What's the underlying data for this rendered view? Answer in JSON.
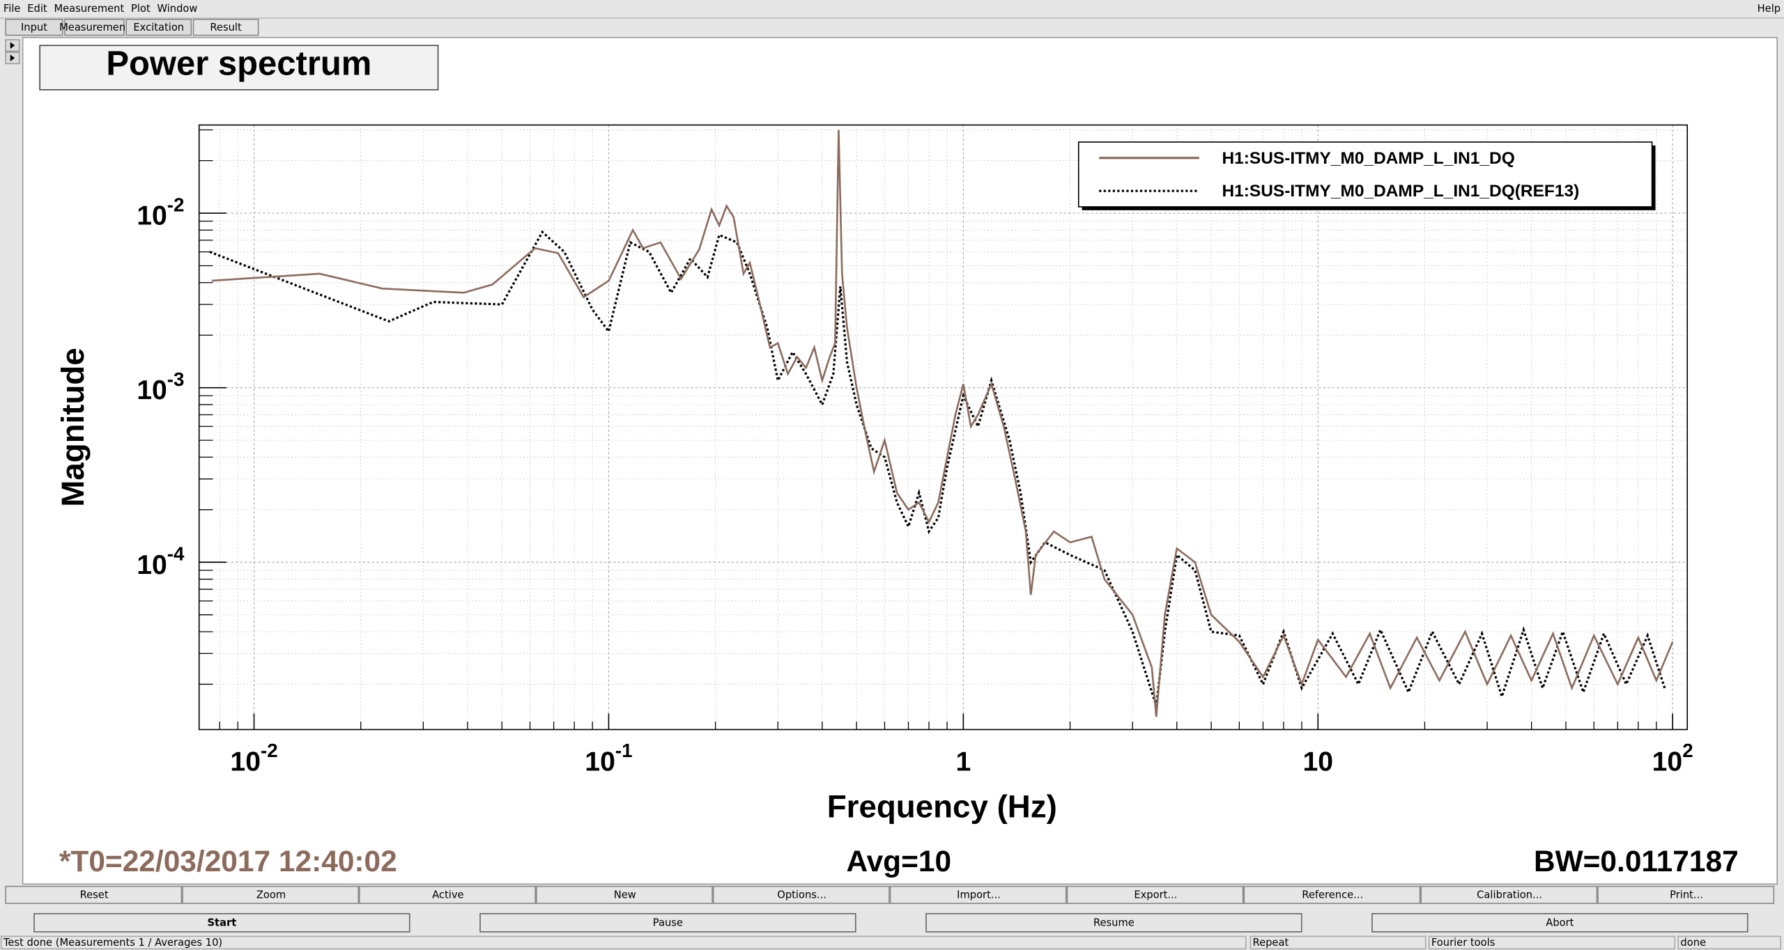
{
  "menu": {
    "items": [
      "File",
      "Edit",
      "Measurement",
      "Plot",
      "Window"
    ],
    "help": "Help"
  },
  "tabs": {
    "items": [
      "Input",
      "Measurement",
      "Excitation",
      "Result"
    ],
    "selected": 3
  },
  "panel_title": "Power spectrum",
  "chart_data": {
    "type": "line",
    "x_label": "Frequency (Hz)",
    "y_label": "Magnitude",
    "xlog": true,
    "ylog": true,
    "grid": true,
    "legend": "top-right",
    "xlim": [
      0.007,
      110
    ],
    "ylim": [
      1.1e-05,
      0.032
    ],
    "xticks": [
      {
        "value": 0.01,
        "label": "10",
        "exponent": "-2"
      },
      {
        "value": 0.1,
        "label": "10",
        "exponent": "-1"
      },
      1,
      10,
      {
        "value": 100,
        "label": "10",
        "exponent": "2"
      }
    ],
    "yticks": [
      {
        "value": 0.01,
        "label": "10",
        "exponent": "-2"
      },
      {
        "value": 0.001,
        "label": "10",
        "exponent": "-3"
      },
      {
        "value": 0.0001,
        "label": "10",
        "exponent": "-4"
      }
    ],
    "xminor": [
      0.008,
      0.009,
      0.02,
      0.03,
      0.04,
      0.05,
      0.06,
      0.07,
      0.08,
      0.09,
      0.2,
      0.3,
      0.4,
      0.5,
      0.6,
      0.7,
      0.8,
      0.9,
      2,
      3,
      4,
      5,
      6,
      7,
      8,
      9,
      20,
      30,
      40,
      50,
      60,
      70,
      80,
      90
    ],
    "yminor": [
      2e-05,
      3e-05,
      4e-05,
      5e-05,
      6e-05,
      7e-05,
      8e-05,
      9e-05,
      0.0002,
      0.0003,
      0.0004,
      0.0005,
      0.0006,
      0.0007,
      0.0008,
      0.0009,
      0.002,
      0.003,
      0.004,
      0.005,
      0.006,
      0.007,
      0.008,
      0.009,
      0.02,
      0.03
    ],
    "series": [
      {
        "name": "H1:SUS-ITMY_M0_DAMP_L_IN1_DQ",
        "color": "#8b6b5c",
        "style": "solid",
        "x": [
          0.0076,
          0.0153,
          0.023,
          0.039,
          0.047,
          0.062,
          0.072,
          0.085,
          0.1,
          0.117,
          0.125,
          0.14,
          0.16,
          0.18,
          0.195,
          0.205,
          0.215,
          0.225,
          0.24,
          0.25,
          0.265,
          0.285,
          0.3,
          0.32,
          0.34,
          0.36,
          0.38,
          0.4,
          0.42,
          0.435,
          0.445,
          0.455,
          0.47,
          0.5,
          0.53,
          0.56,
          0.6,
          0.65,
          0.7,
          0.75,
          0.8,
          0.85,
          0.9,
          0.95,
          1.0,
          1.05,
          1.1,
          1.2,
          1.3,
          1.4,
          1.5,
          1.55,
          1.6,
          1.8,
          2.0,
          2.3,
          2.5,
          3.0,
          3.4,
          3.5,
          3.7,
          4.0,
          4.5,
          5.0,
          6,
          7,
          8,
          9,
          10,
          12,
          14,
          16,
          19,
          22,
          26,
          30,
          35,
          40,
          46,
          52,
          60,
          70,
          80,
          90,
          100
        ],
        "values": [
          0.0041,
          0.0045,
          0.0037,
          0.0035,
          0.0039,
          0.0063,
          0.0059,
          0.0033,
          0.0041,
          0.008,
          0.0063,
          0.0068,
          0.0042,
          0.0062,
          0.0105,
          0.0085,
          0.011,
          0.0095,
          0.0045,
          0.0052,
          0.0032,
          0.0017,
          0.0018,
          0.0012,
          0.0015,
          0.0013,
          0.0017,
          0.0011,
          0.0015,
          0.0018,
          0.03,
          0.0045,
          0.0022,
          0.001,
          0.00055,
          0.00033,
          0.0005,
          0.00025,
          0.0002,
          0.00022,
          0.00017,
          0.00022,
          0.0004,
          0.0007,
          0.00105,
          0.0006,
          0.0007,
          0.00105,
          0.0006,
          0.0003,
          0.00015,
          6.5e-05,
          0.00011,
          0.00015,
          0.00013,
          0.00014,
          8e-05,
          5e-05,
          2.5e-05,
          1.3e-05,
          5e-05,
          0.00012,
          0.0001,
          5e-05,
          3.5e-05,
          2.2e-05,
          3.8e-05,
          2e-05,
          3.6e-05,
          2.2e-05,
          3.9e-05,
          1.9e-05,
          3.7e-05,
          2.1e-05,
          4e-05,
          2e-05,
          3.8e-05,
          2.1e-05,
          3.9e-05,
          1.9e-05,
          3.8e-05,
          2e-05,
          3.7e-05,
          2.1e-05,
          3.5e-05
        ]
      },
      {
        "name": "H1:SUS-ITMY_M0_DAMP_L_IN1_DQ(REF13)",
        "color": "#000000",
        "style": "dotted",
        "x": [
          0.0075,
          0.024,
          0.032,
          0.05,
          0.065,
          0.075,
          0.09,
          0.1,
          0.115,
          0.13,
          0.15,
          0.17,
          0.19,
          0.205,
          0.23,
          0.25,
          0.28,
          0.3,
          0.33,
          0.36,
          0.4,
          0.43,
          0.45,
          0.47,
          0.5,
          0.55,
          0.6,
          0.65,
          0.7,
          0.75,
          0.8,
          0.85,
          0.9,
          1.0,
          1.1,
          1.2,
          1.35,
          1.45,
          1.55,
          1.7,
          2.0,
          2.5,
          3.0,
          3.5,
          3.7,
          4.0,
          4.5,
          5.0,
          6,
          7,
          8,
          9,
          11,
          13,
          15,
          18,
          21,
          25,
          29,
          33,
          38,
          43,
          49,
          56,
          64,
          74,
          85,
          95
        ],
        "values": [
          0.006,
          0.0024,
          0.0031,
          0.003,
          0.0078,
          0.006,
          0.0028,
          0.0021,
          0.0068,
          0.006,
          0.0035,
          0.0055,
          0.0043,
          0.0075,
          0.0068,
          0.0045,
          0.0022,
          0.0011,
          0.0016,
          0.0012,
          0.0008,
          0.0012,
          0.0038,
          0.0014,
          0.0008,
          0.00045,
          0.0004,
          0.00022,
          0.00016,
          0.00025,
          0.00015,
          0.00018,
          0.00035,
          0.0009,
          0.0006,
          0.0011,
          0.0005,
          0.00025,
          0.0001,
          0.00013,
          0.00011,
          9e-05,
          4e-05,
          1.5e-05,
          4e-05,
          0.00011,
          9e-05,
          4e-05,
          3.8e-05,
          2e-05,
          4e-05,
          1.9e-05,
          3.9e-05,
          2e-05,
          4.1e-05,
          1.8e-05,
          4e-05,
          2e-05,
          3.9e-05,
          1.7e-05,
          4.1e-05,
          1.9e-05,
          4e-05,
          1.8e-05,
          3.9e-05,
          2e-05,
          3.8e-05,
          1.9e-05
        ]
      }
    ]
  },
  "footer": {
    "t0": "*T0=22/03/2017 12:40:02",
    "avg": "Avg=10",
    "bw": "BW=0.0117187"
  },
  "buttons": [
    "Reset",
    "Zoom",
    "Active",
    "New",
    "Options...",
    "Import...",
    "Export...",
    "Reference...",
    "Calibration...",
    "Print..."
  ],
  "controls": [
    "Start",
    "Pause",
    "Resume",
    "Abort"
  ],
  "status": [
    "Test done (Measurements 1 / Averages 10)",
    "Repeat",
    "Fourier tools",
    "done"
  ]
}
